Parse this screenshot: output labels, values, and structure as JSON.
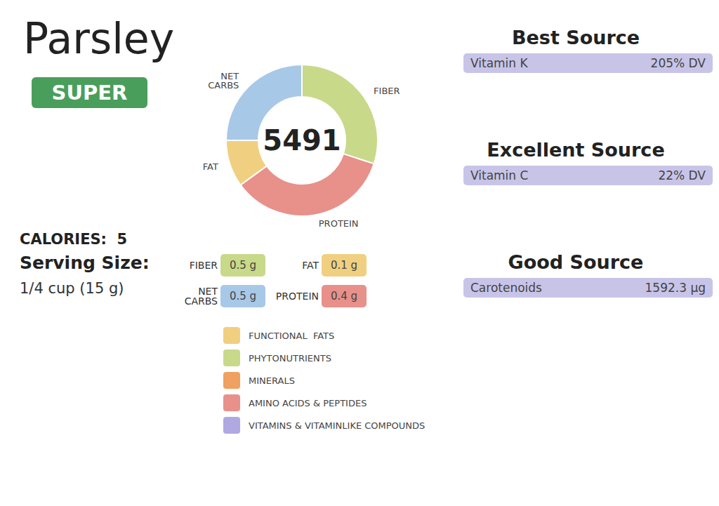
{
  "chart_data": {
    "type": "pie",
    "title": "Parsley",
    "categories": [
      "FIBER",
      "PROTEIN",
      "FAT",
      "NET\nCARBS"
    ],
    "values": [
      30,
      35,
      10,
      25
    ],
    "colors": [
      "#c8d98a",
      "#e8908a",
      "#f0d080",
      "#a8c8e8"
    ],
    "annotations": {
      "badge": {
        "text": "SUPER",
        "color": "#4a9e5c"
      },
      "center": "5491",
      "info": [
        "CALORIES:  5",
        "Serving Size:",
        "1/4 cup (15 g)"
      ],
      "nutrients": [
        [
          {
            "label": "FIBER",
            "value": "0.5 g",
            "color": "#c8d98a"
          },
          {
            "label": "FAT",
            "value": "0.1 g",
            "color": "#f0d080"
          }
        ],
        [
          {
            "label": "NET\nCARBS",
            "value": "0.5 g",
            "color": "#a8c8e8"
          },
          {
            "label": "PROTEIN",
            "value": "0.4 g",
            "color": "#e8908a"
          }
        ]
      ],
      "key": [
        {
          "color": "#f0d080",
          "label": "FUNCTIONAL  FATS"
        },
        {
          "color": "#c8d98a",
          "label": "PHYTONUTRIENTS"
        },
        {
          "color": "#f0a060",
          "label": "MINERALS"
        },
        {
          "color": "#e8908a",
          "label": "AMINO ACIDS & PEPTIDES"
        },
        {
          "color": "#b0a8e0",
          "label": "VITAMINS & VITAMINLIKE COMPOUNDS"
        }
      ],
      "sources": [
        {
          "title": "Best Source",
          "label": "Vitamin K",
          "value": "205% DV",
          "color": "#c8c4e8"
        },
        {
          "title": "Excellent Source",
          "label": "Vitamin C",
          "value": "22% DV",
          "color": "#c8c4e8"
        },
        {
          "title": "Good Source",
          "label": "Carotenoids",
          "value": "1592.3 μg",
          "color": "#c8c4e8"
        }
      ]
    }
  }
}
